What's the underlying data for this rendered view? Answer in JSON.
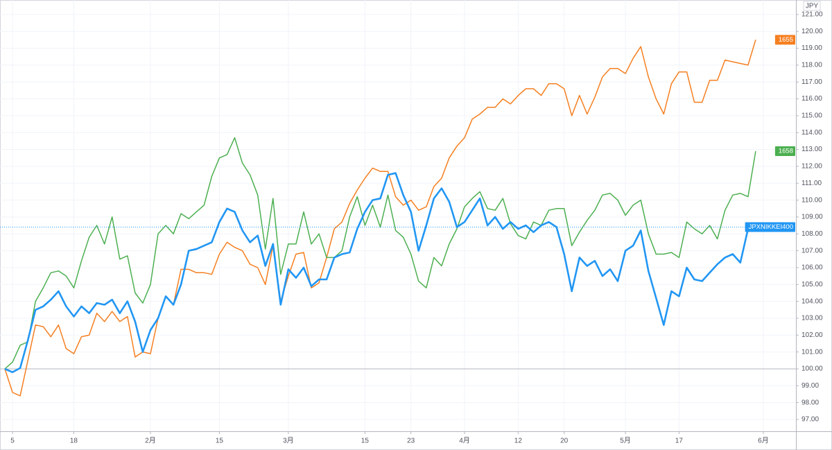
{
  "chart_data": {
    "type": "line",
    "y_label": "JPY",
    "categories": [
      null,
      "5",
      null,
      null,
      null,
      null,
      null,
      null,
      null,
      "18",
      null,
      null,
      null,
      null,
      null,
      null,
      null,
      null,
      null,
      "2月",
      null,
      null,
      null,
      null,
      null,
      null,
      null,
      null,
      "15",
      null,
      null,
      null,
      null,
      null,
      null,
      null,
      null,
      "3月",
      null,
      null,
      null,
      null,
      null,
      null,
      null,
      null,
      null,
      "15",
      null,
      null,
      null,
      null,
      null,
      "23",
      null,
      null,
      null,
      null,
      null,
      null,
      "4月",
      null,
      null,
      null,
      null,
      null,
      null,
      "12",
      null,
      null,
      null,
      null,
      null,
      "20",
      null,
      null,
      null,
      null,
      null,
      null,
      null,
      "5月",
      null,
      null,
      null,
      null,
      null,
      null,
      "17",
      null,
      null,
      null,
      null,
      null,
      null,
      null,
      null,
      null,
      null,
      "6月"
    ],
    "series": [
      {
        "name": "1655",
        "color": "#f57f20",
        "values": [
          100.0,
          98.6,
          98.4,
          100.5,
          102.6,
          102.5,
          101.9,
          102.6,
          101.2,
          100.9,
          101.9,
          102.0,
          103.3,
          102.8,
          103.4,
          102.8,
          103.1,
          100.7,
          101.0,
          100.9,
          103.0,
          104.3,
          103.8,
          105.9,
          105.9,
          105.7,
          105.7,
          105.6,
          106.8,
          107.5,
          107.2,
          107.0,
          106.2,
          106.0,
          105.0,
          107.3,
          104.0,
          105.5,
          106.8,
          106.9,
          104.8,
          105.1,
          106.6,
          108.3,
          108.7,
          109.8,
          110.6,
          111.3,
          111.9,
          111.7,
          111.7,
          110.2,
          109.7,
          110.0,
          109.4,
          109.6,
          110.8,
          111.3,
          112.5,
          113.2,
          113.7,
          114.8,
          115.1,
          115.5,
          115.5,
          116.0,
          115.7,
          116.2,
          116.6,
          116.6,
          116.2,
          116.9,
          116.9,
          116.6,
          115.0,
          116.2,
          115.1,
          116.1,
          117.3,
          117.8,
          117.8,
          117.5,
          118.4,
          119.1,
          117.3,
          116.0,
          115.1,
          116.9,
          117.6,
          117.6,
          115.8,
          115.8,
          117.1,
          117.1,
          118.3,
          118.2,
          118.1,
          118.0,
          119.5,
          null
        ]
      },
      {
        "name": "1658",
        "color": "#4caf50",
        "values": [
          100.0,
          100.4,
          101.4,
          101.6,
          104.0,
          104.8,
          105.7,
          105.8,
          105.5,
          104.8,
          106.4,
          107.8,
          108.5,
          107.4,
          109.0,
          106.5,
          106.7,
          104.5,
          103.9,
          105.0,
          108.0,
          108.5,
          108.0,
          109.2,
          108.9,
          109.3,
          109.7,
          111.4,
          112.5,
          112.7,
          113.7,
          112.2,
          111.5,
          110.3,
          107.1,
          110.1,
          105.6,
          107.4,
          107.4,
          109.3,
          107.4,
          108.0,
          106.6,
          106.6,
          107.0,
          109.0,
          110.2,
          108.5,
          109.7,
          108.4,
          110.3,
          108.2,
          107.8,
          106.8,
          105.2,
          104.8,
          106.6,
          106.1,
          107.4,
          108.3,
          109.6,
          110.1,
          110.5,
          109.5,
          109.4,
          110.1,
          108.6,
          107.9,
          107.7,
          108.7,
          108.5,
          109.4,
          109.5,
          109.5,
          107.3,
          108.1,
          108.8,
          109.4,
          110.3,
          110.4,
          110.0,
          109.1,
          109.7,
          110.0,
          108.0,
          106.8,
          106.8,
          106.9,
          106.6,
          108.7,
          108.3,
          108.0,
          108.5,
          107.7,
          109.4,
          110.3,
          110.4,
          110.2,
          112.9,
          null
        ]
      },
      {
        "name": "JPXNIKKEI400",
        "color": "#2196f3",
        "values": [
          100.0,
          99.8,
          100.05,
          101.7,
          103.5,
          103.7,
          104.1,
          104.6,
          103.7,
          103.1,
          103.7,
          103.3,
          103.9,
          103.8,
          104.1,
          103.3,
          104.0,
          102.8,
          101.0,
          102.3,
          103.0,
          104.3,
          103.8,
          105.0,
          107.0,
          107.1,
          107.3,
          107.5,
          108.7,
          109.5,
          109.3,
          108.2,
          107.5,
          107.9,
          106.1,
          107.4,
          103.8,
          105.9,
          105.4,
          106.0,
          104.9,
          105.3,
          105.3,
          106.6,
          106.8,
          106.9,
          108.3,
          109.3,
          110.0,
          110.1,
          111.5,
          111.6,
          110.3,
          109.3,
          107.0,
          108.5,
          110.1,
          110.7,
          109.9,
          108.4,
          108.7,
          109.4,
          110.1,
          108.5,
          109.0,
          108.3,
          108.7,
          108.3,
          108.5,
          108.1,
          108.5,
          108.7,
          108.4,
          106.8,
          104.6,
          106.6,
          106.1,
          106.4,
          105.5,
          105.9,
          105.2,
          107.0,
          107.3,
          108.2,
          105.8,
          104.2,
          102.6,
          104.6,
          104.3,
          106.0,
          105.3,
          105.2,
          105.7,
          106.2,
          106.6,
          106.8,
          106.3,
          108.3,
          108.4,
          null
        ]
      }
    ],
    "ylim": [
      96.3,
      121.86
    ],
    "yticks": [
      {
        "value": 97,
        "label": "97.00"
      },
      {
        "value": 98,
        "label": "98.00"
      },
      {
        "value": 99,
        "label": "99.00"
      },
      {
        "value": 100,
        "label": "100.00"
      },
      {
        "value": 101,
        "label": "101.00"
      },
      {
        "value": 102,
        "label": "102.00"
      },
      {
        "value": 103,
        "label": "103.00"
      },
      {
        "value": 104,
        "label": "104.00"
      },
      {
        "value": 105,
        "label": "105.00"
      },
      {
        "value": 106,
        "label": "106.00"
      },
      {
        "value": 107,
        "label": "107.00"
      },
      {
        "value": 108,
        "label": "108.00"
      },
      {
        "value": 109,
        "label": "109.00"
      },
      {
        "value": 110,
        "label": "110.00"
      },
      {
        "value": 111,
        "label": "111.00"
      },
      {
        "value": 112,
        "label": "112.00"
      },
      {
        "value": 113,
        "label": "113.00"
      },
      {
        "value": 114,
        "label": "114.00"
      },
      {
        "value": 115,
        "label": "115.00"
      },
      {
        "value": 116,
        "label": "116.00"
      },
      {
        "value": 117,
        "label": "117.00"
      },
      {
        "value": 118,
        "label": "118.00"
      },
      {
        "value": 119,
        "label": "119.00"
      },
      {
        "value": 120,
        "label": "120.00"
      },
      {
        "value": 121,
        "label": "121.00"
      }
    ],
    "baseline": 100,
    "grid": true
  }
}
